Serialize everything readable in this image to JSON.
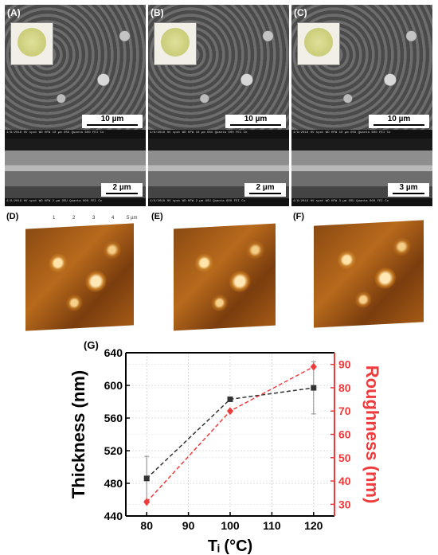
{
  "panels": {
    "sem": [
      {
        "label": "(A)",
        "scale_top": "10 µm",
        "scale_bottom": "2 µm",
        "meta_top": "4/9/2018  HV  spot  WD  HFW   10 µm   OSU Quanta 600  FEI Co",
        "meta_bottom": "4/9/2018  HV  spot  WD  HFW   2 µm   OSU Quanta 600  FEI Co"
      },
      {
        "label": "(B)",
        "scale_top": "10 µm",
        "scale_bottom": "2 µm",
        "meta_top": "4/9/2018  HV  spot  WD  HFW   10 µm   OSU Quanta 600  FEI Co",
        "meta_bottom": "4/9/2018  HV  spot  WD  HFW   2 µm   OSU Quanta 600  FEI Co"
      },
      {
        "label": "(C)",
        "scale_top": "10 µm",
        "scale_bottom": "3 µm",
        "meta_top": "4/9/2018  HV  spot  WD  HFW   10 µm   OSU Quanta 600  FEI Co",
        "meta_bottom": "4/9/2018  HV  spot  WD  HFW   3 µm   OSU Quanta 600  FEI Co"
      }
    ],
    "afm": [
      {
        "label": "(D)",
        "ticks_top": [
          "1",
          "2",
          "3",
          "4",
          "5 µm"
        ]
      },
      {
        "label": "(E)",
        "ticks_top": []
      },
      {
        "label": "(F)",
        "ticks_top": []
      }
    ],
    "chart_label": "(G)"
  },
  "chart_data": {
    "type": "line",
    "xlabel": "Tᵢ (°C)",
    "ylabel": "Thickness (nm)",
    "y2label": "Roughness (nm)",
    "x": [
      80,
      100,
      120
    ],
    "xlim": [
      75,
      125
    ],
    "xticks": [
      80,
      90,
      100,
      110,
      120
    ],
    "ylim": [
      440,
      640
    ],
    "yticks": [
      440,
      480,
      520,
      560,
      600,
      640
    ],
    "y2lim": [
      25,
      95
    ],
    "y2ticks": [
      30,
      40,
      50,
      60,
      70,
      80,
      90
    ],
    "grid": true,
    "series": [
      {
        "values": [
          486,
          583,
          597
        ],
        "errors": [
          27,
          0,
          32
        ],
        "axis": "left",
        "color": "#333333",
        "marker": "square"
      },
      {
        "values": [
          31,
          70,
          89
        ],
        "axis": "right",
        "color": "#ef3b3b",
        "marker": "diamond"
      }
    ]
  }
}
